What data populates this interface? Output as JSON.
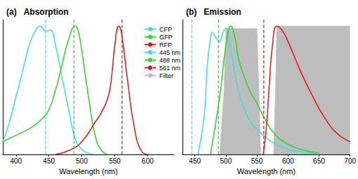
{
  "chart_data": [
    {
      "type": "line",
      "label": "(a)",
      "title": "Absorption",
      "xlabel": "Wavelength (nm)",
      "xlim": [
        380,
        640
      ],
      "xticks": [
        400,
        450,
        500,
        550,
        600
      ],
      "ylim": [
        0,
        1.05
      ],
      "tick_labels": "x",
      "legend": "right",
      "series": [
        {
          "name": "CFP",
          "type": "line",
          "color": "#33e3e3",
          "x": [
            380,
            390,
            400,
            410,
            420,
            430,
            437,
            445,
            452,
            460,
            470,
            480,
            490,
            500,
            510,
            520
          ],
          "values": [
            0.1,
            0.25,
            0.45,
            0.65,
            0.85,
            0.97,
            1.0,
            0.96,
            0.97,
            0.85,
            0.6,
            0.35,
            0.12,
            0.04,
            0.01,
            0.0
          ]
        },
        {
          "name": "GFP",
          "type": "line",
          "color": "#22dd22",
          "x": [
            380,
            400,
            420,
            440,
            450,
            460,
            470,
            480,
            490,
            495,
            500,
            510,
            520,
            530,
            540
          ],
          "values": [
            0.1,
            0.15,
            0.2,
            0.28,
            0.35,
            0.5,
            0.7,
            0.9,
            1.0,
            0.95,
            0.8,
            0.45,
            0.15,
            0.03,
            0.0
          ]
        },
        {
          "name": "RFP",
          "type": "line",
          "color": "#ee1111",
          "x": [
            460,
            480,
            500,
            520,
            530,
            540,
            545,
            550,
            556,
            560,
            570,
            580,
            590,
            600
          ],
          "values": [
            0.0,
            0.03,
            0.1,
            0.25,
            0.33,
            0.45,
            0.6,
            0.85,
            1.0,
            0.95,
            0.55,
            0.2,
            0.03,
            0.0
          ]
        },
        {
          "name": "445 nm",
          "type": "vline",
          "color": "#33e3e3",
          "line_style": "dashed",
          "x": 445
        },
        {
          "name": "488 nm",
          "type": "vline",
          "color": "#22dd22",
          "line_style": "dashed",
          "x": 488
        },
        {
          "name": "561 nm",
          "type": "vline",
          "color": "#ee1111",
          "line_style": "dashed",
          "x": 561
        }
      ]
    },
    {
      "type": "line",
      "label": "(b)",
      "title": "Emission",
      "xlabel": "Wavelength (nm)",
      "xlim": [
        430,
        700
      ],
      "xticks": [
        450,
        500,
        550,
        600,
        650,
        700
      ],
      "ylim": [
        0,
        1.05
      ],
      "tick_labels": "x",
      "series": [
        {
          "name": "Filter",
          "type": "area",
          "color": "#bdbdbd",
          "x": [
            490,
            497,
            500,
            550,
            553,
            556,
            577,
            580,
            582,
            700
          ],
          "values": [
            0.0,
            0.5,
            0.98,
            0.98,
            0.5,
            0.0,
            0.0,
            0.5,
            1.0,
            1.0
          ]
        },
        {
          "name": "CFP",
          "type": "line",
          "color": "#33e3e3",
          "x": [
            455,
            465,
            470,
            475,
            478,
            485,
            490,
            495,
            500,
            505,
            510,
            520,
            530,
            540,
            560,
            580,
            600,
            620,
            650
          ],
          "values": [
            0.0,
            0.3,
            0.7,
            0.9,
            0.95,
            0.9,
            0.88,
            0.95,
            0.98,
            0.9,
            0.75,
            0.5,
            0.35,
            0.25,
            0.15,
            0.08,
            0.04,
            0.02,
            0.0
          ]
        },
        {
          "name": "GFP",
          "type": "line",
          "color": "#22dd22",
          "x": [
            475,
            490,
            500,
            508,
            515,
            520,
            530,
            540,
            550,
            560,
            580,
            600,
            620,
            650
          ],
          "values": [
            0.0,
            0.45,
            0.85,
            1.0,
            0.9,
            0.75,
            0.6,
            0.48,
            0.4,
            0.3,
            0.15,
            0.08,
            0.04,
            0.01
          ]
        },
        {
          "name": "RFP",
          "type": "line",
          "color": "#ee1111",
          "x": [
            560,
            565,
            570,
            575,
            582,
            590,
            600,
            620,
            640,
            660,
            680,
            700
          ],
          "values": [
            0.0,
            0.2,
            0.55,
            0.85,
            1.0,
            0.97,
            0.88,
            0.65,
            0.45,
            0.28,
            0.16,
            0.1
          ]
        },
        {
          "name": "445 nm",
          "type": "vline",
          "color": "#33e3e3",
          "line_style": "dashed",
          "x": 445
        },
        {
          "name": "488 nm",
          "type": "vline",
          "color": "#22dd22",
          "line_style": "dashed",
          "x": 488
        },
        {
          "name": "561 nm",
          "type": "vline",
          "color": "#ee1111",
          "line_style": "dashed",
          "x": 561
        }
      ]
    }
  ]
}
